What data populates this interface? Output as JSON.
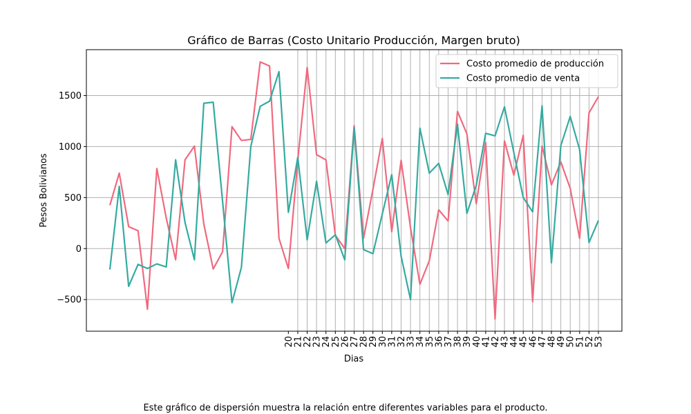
{
  "chart_data": {
    "type": "line",
    "title": "Gráfico de Barras (Costo Unitario Producción, Margen bruto)",
    "xlabel": "Dias",
    "ylabel": "Pesos Bolivianos",
    "x": [
      1,
      2,
      3,
      4,
      5,
      6,
      7,
      8,
      9,
      10,
      11,
      12,
      13,
      14,
      15,
      16,
      17,
      18,
      19,
      20,
      21,
      22,
      23,
      24,
      25,
      26,
      27,
      28,
      29,
      30,
      31,
      32,
      33,
      34,
      35,
      36,
      37,
      38,
      39,
      40,
      41,
      42,
      43,
      44,
      45,
      46,
      47,
      48,
      49,
      50,
      51,
      52,
      53
    ],
    "xticks": [
      "20",
      "21",
      "22",
      "23",
      "24",
      "25",
      "26",
      "27",
      "28",
      "29",
      "30",
      "31",
      "32",
      "33",
      "34",
      "35",
      "36",
      "37",
      "38",
      "39",
      "40",
      "41",
      "42",
      "43",
      "44",
      "45",
      "46",
      "47",
      "48",
      "49",
      "50",
      "51",
      "52",
      "53"
    ],
    "xlim": [
      -1.5,
      55.5
    ],
    "ylim": [
      -810,
      1950
    ],
    "yticks": [
      -500,
      0,
      500,
      1000,
      1500
    ],
    "ytick_labels": [
      "−500",
      "0",
      "500",
      "1000",
      "1500"
    ],
    "grid": "y-all, x-from-21",
    "legend_position": "upper-right",
    "series": [
      {
        "name": "Costo promedio de producción",
        "color": "#f0697e",
        "values": [
          425,
          740,
          215,
          175,
          -595,
          785,
          300,
          -110,
          870,
          1005,
          240,
          -200,
          -30,
          1195,
          1060,
          1070,
          1830,
          1790,
          100,
          -195,
          865,
          1775,
          920,
          870,
          130,
          0,
          1205,
          100,
          580,
          1080,
          165,
          865,
          205,
          -350,
          -120,
          380,
          270,
          1345,
          1125,
          440,
          1040,
          -690,
          1055,
          720,
          1110,
          -520,
          1005,
          625,
          850,
          590,
          100,
          1330,
          1490
        ]
      },
      {
        "name": "Costo promedio de venta",
        "color": "#35aaa0",
        "values": [
          -205,
          610,
          -370,
          -155,
          -195,
          -150,
          -180,
          870,
          255,
          -110,
          1425,
          1435,
          460,
          -530,
          -185,
          1000,
          1395,
          1445,
          1735,
          355,
          895,
          85,
          660,
          55,
          135,
          -110,
          1185,
          -10,
          -50,
          340,
          725,
          -75,
          -500,
          1180,
          740,
          835,
          530,
          1220,
          345,
          620,
          1130,
          1105,
          1390,
          940,
          500,
          360,
          1400,
          -140,
          1010,
          1295,
          970,
          60,
          275
        ]
      }
    ]
  },
  "caption": "Este gráfico de dispersión muestra la relación entre diferentes variables para el producto."
}
